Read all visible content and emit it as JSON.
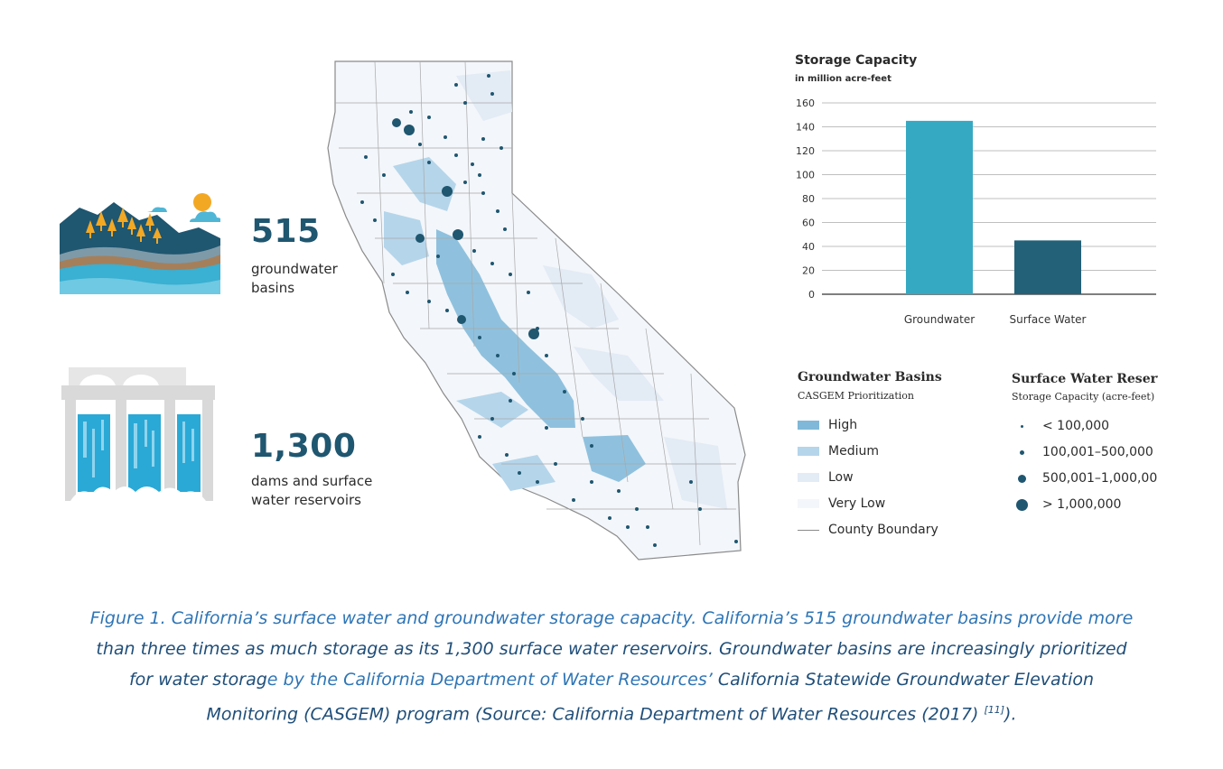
{
  "stats": {
    "groundwater": {
      "number": "515",
      "label_line1": "groundwater",
      "label_line2": "basins",
      "icon": "mountain-forest-icon"
    },
    "reservoirs": {
      "number": "1,300",
      "label_line1": "dams and surface",
      "label_line2": "water reservoirs",
      "icon": "dam-icon"
    }
  },
  "chart_data": {
    "type": "bar",
    "title": "Storage Capacity",
    "subtitle": "in million acre-feet",
    "categories": [
      "Groundwater",
      "Surface Water"
    ],
    "values": [
      145,
      45
    ],
    "colors": [
      "#36a9c2",
      "#236178"
    ],
    "ylim": [
      0,
      160
    ],
    "yticks": [
      "0",
      "20",
      "40",
      "60",
      "80",
      "100",
      "120",
      "140",
      "160"
    ],
    "grid": true
  },
  "legend_basins": {
    "title": "Groundwater Basins",
    "subtitle": "CASGEM Prioritization",
    "items": [
      {
        "label": "High",
        "color": "#7fb8d8"
      },
      {
        "label": "Medium",
        "color": "#b5d5ea"
      },
      {
        "label": "Low",
        "color": "#e3ebf5"
      },
      {
        "label": "Very Low",
        "color": "#f3f6fa"
      },
      {
        "label": "County Boundary",
        "color": "#8a8a8a"
      }
    ]
  },
  "legend_reservoirs": {
    "title": "Surface Water Reservo",
    "subtitle": "Storage Capacity (acre-feet)",
    "items": [
      {
        "label": "< 100,000"
      },
      {
        "label": "100,001–500,000"
      },
      {
        "label": "500,001–1,000,00"
      },
      {
        "label": "> 1,000,000"
      }
    ]
  },
  "map": {
    "state": "California",
    "land_color": "#f3f6fa",
    "basin_color": "#8fc1de",
    "reservoir_color": "#1f5670"
  },
  "caption": {
    "part1": "Figure 1. California’s surface water and groundwater storage capacity. California’s 515 groundwater basins provide more",
    "part2": "than three times as much storage as its 1,300 surface water reservoirs. Groundwater basins are increasingly prioritized",
    "part3": "for water storag",
    "part4": "e by the California Department of Water Resources’ ",
    "part5": "California Statewide Groundwater Elevation",
    "part6": "Monitoring (CASGEM) program (Source: California Department of Water Resources (2017) ",
    "ref": "[11]",
    "part7": ")."
  }
}
